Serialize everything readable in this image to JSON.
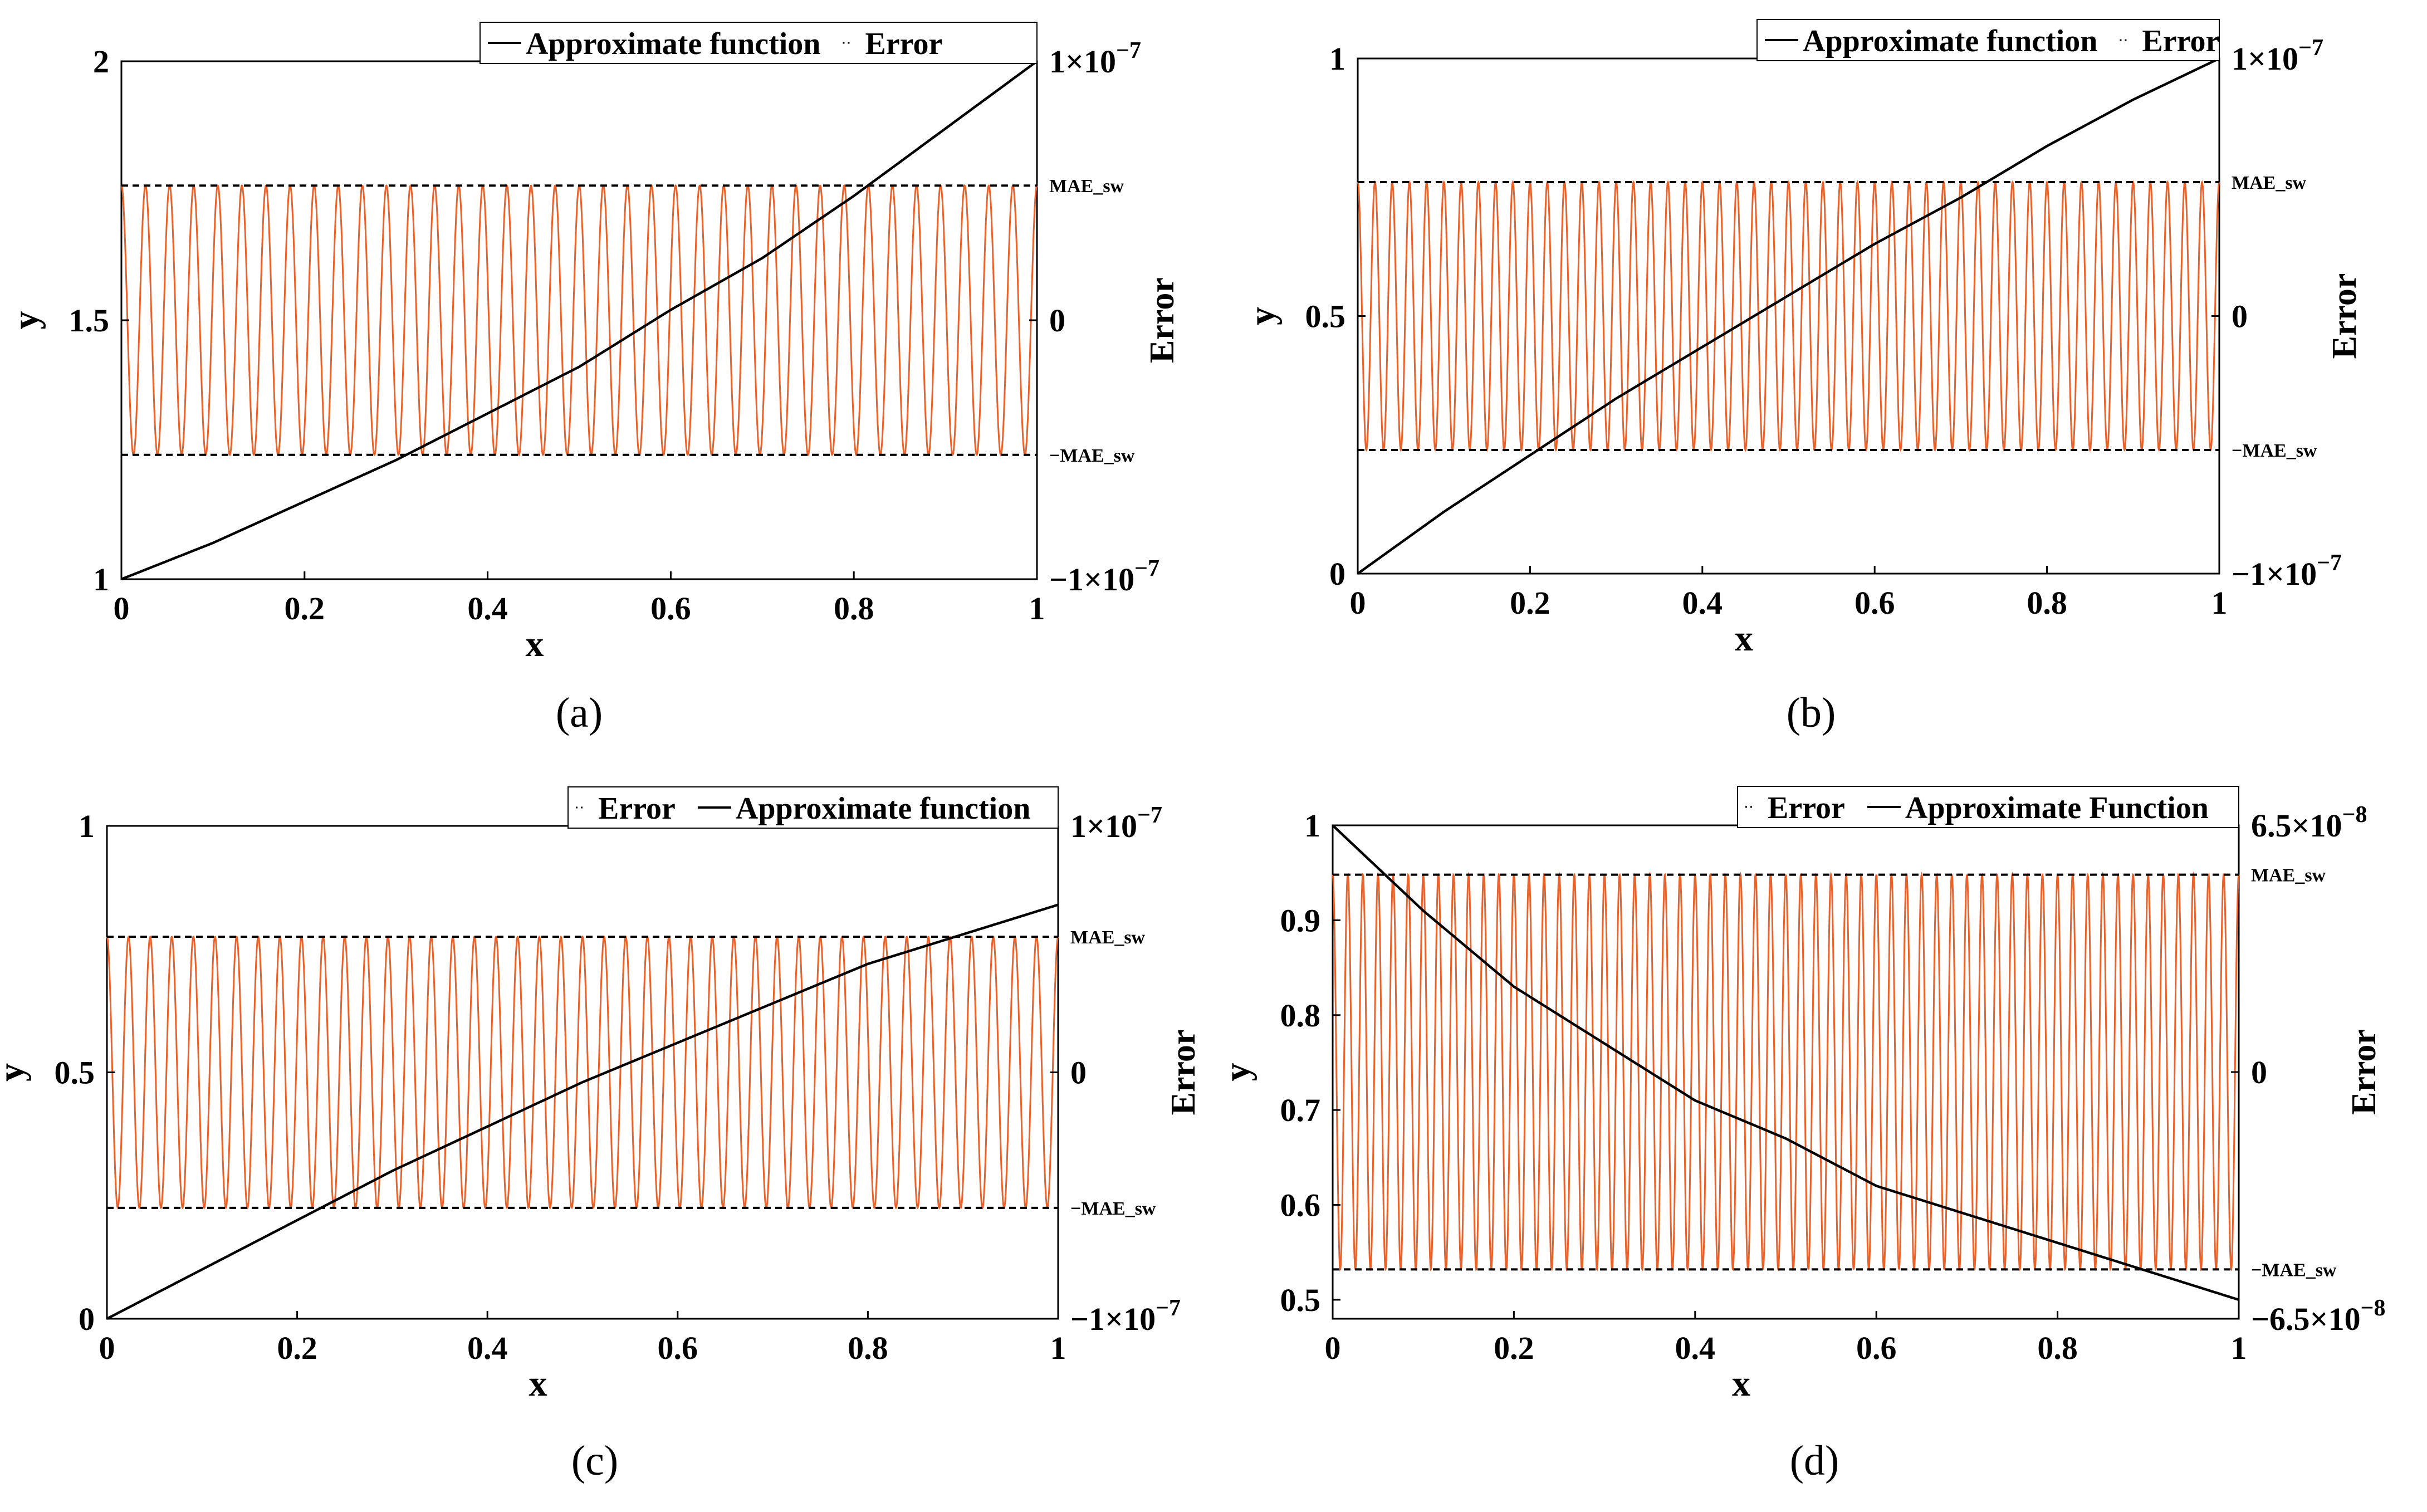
{
  "figure": {
    "panels": [
      {
        "caption": "(a)"
      },
      {
        "caption": "(b)"
      },
      {
        "caption": "(c)"
      },
      {
        "caption": "(d)"
      }
    ]
  },
  "chart_data": [
    {
      "type": "line",
      "panel": "(a)",
      "xlabel": "x",
      "ylabel": "y",
      "y2label": "Error",
      "xlim": [
        0,
        1
      ],
      "ylim": [
        1,
        2
      ],
      "y2lim": [
        -1e-07,
        1e-07
      ],
      "xticks": [
        "0",
        "0.2",
        "0.4",
        "0.6",
        "0.8",
        "1"
      ],
      "yticks": [
        "1",
        "1.5",
        "2"
      ],
      "y2ticks": [
        "−1×10",
        "0",
        "1×10"
      ],
      "y2tick_exponents": [
        "−7",
        "",
        "−7"
      ],
      "mae_labels": [
        "MAE_sw",
        "−MAE_sw"
      ],
      "mae_level_fraction": 0.52,
      "legend": [
        "Approximate function",
        "Error"
      ],
      "legend_position": "top-right",
      "grid": false,
      "series": [
        {
          "name": "Approximate function",
          "color": "#000000",
          "x": [
            0,
            0.1,
            0.2,
            0.3,
            0.4,
            0.5,
            0.6,
            0.7,
            0.8,
            0.9,
            1.0
          ],
          "y": [
            1.0,
            1.07,
            1.15,
            1.23,
            1.32,
            1.41,
            1.52,
            1.62,
            1.74,
            1.87,
            2.0
          ]
        },
        {
          "name": "Error",
          "color": "#e8622c",
          "axis": "right",
          "oscillations": 38
        }
      ]
    },
    {
      "type": "line",
      "panel": "(b)",
      "xlabel": "x",
      "ylabel": "y",
      "y2label": "Error",
      "xlim": [
        0,
        1
      ],
      "ylim": [
        0,
        1
      ],
      "y2lim": [
        -1e-07,
        1e-07
      ],
      "xticks": [
        "0",
        "0.2",
        "0.4",
        "0.6",
        "0.8",
        "1"
      ],
      "yticks": [
        "0",
        "0.5",
        "1"
      ],
      "y2ticks": [
        "−1×10",
        "0",
        "1×10"
      ],
      "y2tick_exponents": [
        "−7",
        "",
        "−7"
      ],
      "mae_labels": [
        "MAE_sw",
        "−MAE_sw"
      ],
      "mae_level_fraction": 0.52,
      "legend": [
        "Approximate function",
        "Error"
      ],
      "legend_position": "top-right",
      "grid": false,
      "series": [
        {
          "name": "Approximate function",
          "color": "#000000",
          "x": [
            0,
            0.1,
            0.2,
            0.3,
            0.4,
            0.5,
            0.6,
            0.7,
            0.8,
            0.9,
            1.0
          ],
          "y": [
            0,
            0.12,
            0.23,
            0.34,
            0.44,
            0.54,
            0.64,
            0.73,
            0.83,
            0.92,
            1.0
          ]
        },
        {
          "name": "Error",
          "color": "#e8622c",
          "axis": "right",
          "oscillations": 50
        }
      ]
    },
    {
      "type": "line",
      "panel": "(c)",
      "xlabel": "x",
      "ylabel": "y",
      "y2label": "Error",
      "xlim": [
        0,
        1
      ],
      "ylim": [
        0,
        1
      ],
      "y2lim": [
        -1e-07,
        1e-07
      ],
      "xticks": [
        "0",
        "0.2",
        "0.4",
        "0.6",
        "0.8",
        "1"
      ],
      "yticks": [
        "0",
        "0.5",
        "1"
      ],
      "y2ticks": [
        "−1×10",
        "0",
        "1×10"
      ],
      "y2tick_exponents": [
        "−7",
        "",
        "−7"
      ],
      "mae_labels": [
        "MAE_sw",
        "−MAE_sw"
      ],
      "mae_level_fraction": 0.55,
      "legend": [
        "Error",
        "Approximate function"
      ],
      "legend_position": "top-right",
      "grid": false,
      "series": [
        {
          "name": "Approximate function",
          "color": "#000000",
          "x": [
            0,
            0.1,
            0.2,
            0.3,
            0.4,
            0.5,
            0.6,
            0.7,
            0.8,
            0.9,
            1.0
          ],
          "y": [
            0,
            0.1,
            0.2,
            0.3,
            0.39,
            0.48,
            0.56,
            0.64,
            0.72,
            0.78,
            0.84
          ]
        },
        {
          "name": "Error",
          "color": "#e8622c",
          "axis": "right",
          "oscillations": 44
        }
      ]
    },
    {
      "type": "line",
      "panel": "(d)",
      "xlabel": "x",
      "ylabel": "y",
      "y2label": "Error",
      "xlim": [
        0,
        1
      ],
      "ylim": [
        0.48,
        1
      ],
      "y2lim": [
        -6.5e-08,
        6.5e-08
      ],
      "xticks": [
        "0",
        "0.2",
        "0.4",
        "0.6",
        "0.8",
        "1"
      ],
      "yticks": [
        "0.5",
        "0.6",
        "0.7",
        "0.8",
        "0.9",
        "1"
      ],
      "y2ticks": [
        "−6.5×10",
        "0",
        "6.5×10"
      ],
      "y2tick_exponents": [
        "−8",
        "",
        "−8"
      ],
      "mae_labels": [
        "MAE_sw",
        "−MAE_sw"
      ],
      "mae_level_fraction": 0.8,
      "legend": [
        "Error",
        "Approximate Function"
      ],
      "legend_position": "top-right",
      "grid": false,
      "series": [
        {
          "name": "Approximate Function",
          "color": "#000000",
          "x": [
            0,
            0.1,
            0.2,
            0.3,
            0.4,
            0.5,
            0.6,
            0.7,
            0.8,
            0.9,
            1.0
          ],
          "y": [
            1.0,
            0.91,
            0.83,
            0.77,
            0.71,
            0.67,
            0.62,
            0.59,
            0.56,
            0.53,
            0.5
          ]
        },
        {
          "name": "Error",
          "color": "#e8622c",
          "axis": "right",
          "oscillations": 60
        }
      ]
    }
  ]
}
